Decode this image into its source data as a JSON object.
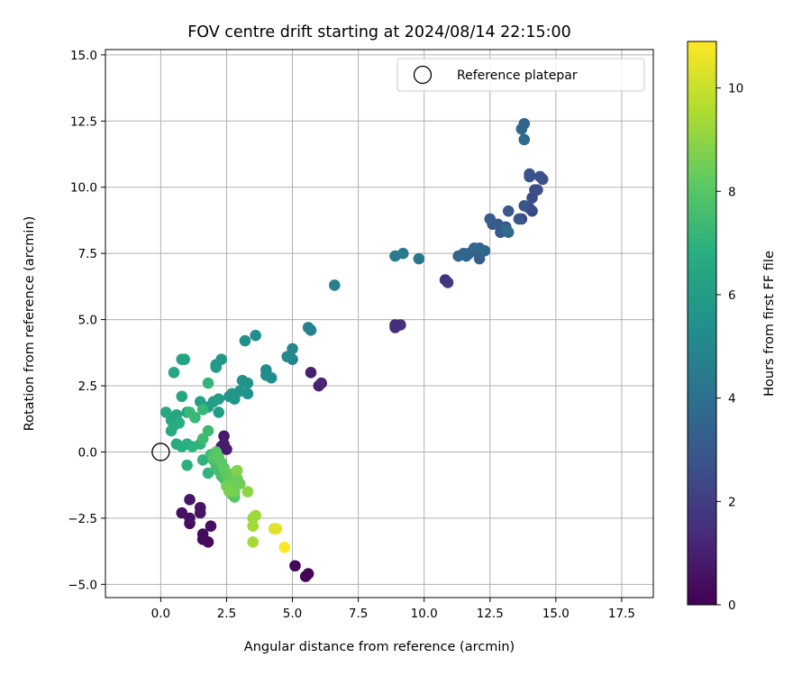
{
  "chart_data": {
    "type": "scatter",
    "title": "FOV centre drift starting at 2024/08/14 22:15:00",
    "xlabel": "Angular distance from reference (arcmin)",
    "ylabel": "Rotation from reference (arcmin)",
    "xlim": [
      -2.1,
      18.7
    ],
    "ylim": [
      -5.5,
      15.2
    ],
    "x_ticks": [
      0.0,
      2.5,
      5.0,
      7.5,
      10.0,
      12.5,
      15.0,
      17.5
    ],
    "x_tick_labels": [
      "0.0",
      "2.5",
      "5.0",
      "7.5",
      "10.0",
      "12.5",
      "15.0",
      "17.5"
    ],
    "y_ticks": [
      -5.0,
      -2.5,
      0.0,
      2.5,
      5.0,
      7.5,
      10.0,
      12.5,
      15.0
    ],
    "y_tick_labels": [
      "−5.0",
      "−2.5",
      "0.0",
      "2.5",
      "5.0",
      "7.5",
      "10.0",
      "12.5",
      "15.0"
    ],
    "grid": true,
    "legend": {
      "placement": "top-right",
      "entries": [
        "Reference platepar"
      ]
    },
    "reference_point": {
      "x": 0.0,
      "y": 0.0,
      "label": "Reference platepar"
    },
    "colorbar": {
      "label": "Hours from first FF file",
      "colormap": "viridis",
      "range": [
        0,
        10.9
      ],
      "ticks": [
        0,
        2,
        4,
        6,
        8,
        10
      ],
      "tick_labels": [
        "0",
        "2",
        "4",
        "6",
        "8",
        "10"
      ]
    },
    "points": [
      [
        5.6,
        -4.6,
        0.05
      ],
      [
        5.5,
        -4.7,
        0.1
      ],
      [
        5.1,
        -4.3,
        0.15
      ],
      [
        1.6,
        -3.3,
        0.25
      ],
      [
        1.8,
        -3.4,
        0.3
      ],
      [
        1.6,
        -3.1,
        0.35
      ],
      [
        1.9,
        -2.8,
        0.4
      ],
      [
        1.1,
        -2.7,
        0.45
      ],
      [
        0.8,
        -2.3,
        0.5
      ],
      [
        1.1,
        -2.5,
        0.55
      ],
      [
        1.5,
        -2.3,
        0.6
      ],
      [
        1.5,
        -2.1,
        0.65
      ],
      [
        1.1,
        -1.8,
        0.7
      ],
      [
        2.4,
        0.6,
        0.75
      ],
      [
        2.5,
        0.1,
        0.8
      ],
      [
        2.4,
        0.3,
        0.85
      ],
      [
        2.3,
        0.2,
        0.9
      ],
      [
        5.7,
        3.0,
        1.0
      ],
      [
        6.0,
        2.5,
        1.1
      ],
      [
        6.1,
        2.6,
        1.2
      ],
      [
        8.9,
        4.7,
        1.4
      ],
      [
        8.9,
        4.8,
        1.45
      ],
      [
        9.1,
        4.8,
        1.5
      ],
      [
        10.8,
        6.5,
        1.6
      ],
      [
        10.9,
        6.4,
        1.7
      ],
      [
        13.7,
        8.8,
        2.3
      ],
      [
        14.0,
        9.2,
        2.4
      ],
      [
        14.1,
        9.1,
        2.45
      ],
      [
        14.1,
        9.6,
        2.5
      ],
      [
        14.2,
        9.9,
        2.55
      ],
      [
        14.3,
        9.9,
        2.6
      ],
      [
        14.4,
        10.4,
        2.65
      ],
      [
        14.5,
        10.3,
        2.7
      ],
      [
        14.0,
        10.5,
        2.75
      ],
      [
        14.0,
        10.4,
        2.8
      ],
      [
        13.8,
        9.3,
        2.85
      ],
      [
        13.6,
        8.8,
        2.9
      ],
      [
        13.2,
        9.1,
        2.95
      ],
      [
        13.1,
        8.5,
        3.0
      ],
      [
        12.9,
        8.3,
        3.05
      ],
      [
        12.8,
        8.6,
        3.1
      ],
      [
        12.6,
        8.6,
        3.15
      ],
      [
        12.5,
        8.8,
        3.2
      ],
      [
        12.2,
        7.6,
        3.25
      ],
      [
        12.1,
        7.3,
        3.3
      ],
      [
        12.1,
        7.7,
        3.35
      ],
      [
        11.9,
        7.6,
        3.4
      ],
      [
        11.7,
        7.5,
        3.45
      ],
      [
        11.6,
        7.4,
        3.5
      ],
      [
        11.3,
        7.4,
        3.55
      ],
      [
        11.5,
        7.5,
        3.6
      ],
      [
        11.9,
        7.7,
        3.65
      ],
      [
        12.3,
        7.6,
        3.7
      ],
      [
        13.8,
        12.4,
        3.5
      ],
      [
        13.7,
        12.2,
        3.6
      ],
      [
        13.8,
        11.8,
        3.7
      ],
      [
        13.1,
        8.4,
        3.75
      ],
      [
        13.2,
        8.3,
        3.8
      ],
      [
        9.8,
        7.3,
        4.3
      ],
      [
        9.2,
        7.5,
        4.4
      ],
      [
        8.9,
        7.4,
        4.5
      ],
      [
        6.6,
        6.3,
        4.7
      ],
      [
        5.7,
        4.6,
        4.8
      ],
      [
        5.6,
        4.7,
        4.85
      ],
      [
        5.0,
        3.5,
        4.9
      ],
      [
        5.0,
        3.9,
        5.0
      ],
      [
        4.8,
        3.6,
        5.1
      ],
      [
        4.0,
        2.9,
        5.2
      ],
      [
        4.0,
        3.1,
        5.25
      ],
      [
        4.2,
        2.8,
        5.3
      ],
      [
        3.6,
        4.4,
        5.35
      ],
      [
        3.2,
        4.2,
        5.4
      ],
      [
        3.3,
        2.6,
        5.45
      ],
      [
        3.3,
        2.2,
        5.5
      ],
      [
        3.1,
        2.7,
        5.55
      ],
      [
        3.0,
        2.3,
        5.6
      ],
      [
        2.8,
        2.0,
        5.65
      ],
      [
        2.6,
        2.1,
        5.7
      ],
      [
        2.7,
        2.2,
        5.75
      ],
      [
        2.3,
        3.5,
        5.8
      ],
      [
        2.1,
        3.3,
        5.85
      ],
      [
        2.1,
        3.2,
        5.9
      ],
      [
        2.2,
        2.0,
        5.95
      ],
      [
        2.2,
        1.5,
        6.0
      ],
      [
        2.0,
        1.9,
        6.05
      ],
      [
        1.8,
        1.7,
        6.1
      ],
      [
        1.5,
        1.9,
        6.15
      ],
      [
        1.0,
        1.5,
        6.2
      ],
      [
        0.9,
        3.5,
        6.25
      ],
      [
        0.8,
        3.5,
        6.3
      ],
      [
        0.5,
        3.0,
        6.35
      ],
      [
        0.8,
        2.1,
        6.4
      ],
      [
        0.6,
        1.4,
        6.45
      ],
      [
        0.4,
        1.2,
        6.5
      ],
      [
        0.4,
        0.8,
        6.55
      ],
      [
        0.2,
        1.5,
        6.6
      ],
      [
        0.5,
        1.0,
        6.65
      ],
      [
        0.6,
        0.3,
        6.7
      ],
      [
        0.7,
        1.1,
        6.75
      ],
      [
        0.8,
        0.2,
        6.8
      ],
      [
        1.0,
        0.3,
        6.85
      ],
      [
        1.0,
        -0.5,
        6.9
      ],
      [
        1.2,
        0.2,
        6.95
      ],
      [
        1.5,
        0.3,
        7.0
      ],
      [
        1.6,
        -0.3,
        7.05
      ],
      [
        1.8,
        -0.8,
        7.1
      ],
      [
        1.8,
        2.6,
        7.15
      ],
      [
        1.6,
        1.6,
        7.2
      ],
      [
        1.3,
        1.3,
        7.25
      ],
      [
        1.1,
        1.5,
        7.3
      ],
      [
        1.8,
        0.8,
        7.35
      ],
      [
        1.6,
        0.5,
        7.4
      ],
      [
        1.9,
        -0.1,
        7.45
      ],
      [
        2.0,
        -0.3,
        7.5
      ],
      [
        2.1,
        -0.5,
        7.55
      ],
      [
        2.2,
        -0.7,
        7.6
      ],
      [
        2.3,
        -0.9,
        7.65
      ],
      [
        2.4,
        -1.0,
        7.7
      ],
      [
        2.5,
        -1.2,
        7.75
      ],
      [
        2.6,
        -1.4,
        7.8
      ],
      [
        2.7,
        -1.6,
        7.85
      ],
      [
        2.8,
        -1.7,
        7.9
      ],
      [
        2.0,
        -0.2,
        7.95
      ],
      [
        2.1,
        0.0,
        8.0
      ],
      [
        2.2,
        -0.2,
        8.05
      ],
      [
        2.3,
        -0.4,
        8.1
      ],
      [
        2.4,
        -0.6,
        8.15
      ],
      [
        2.5,
        -0.8,
        8.2
      ],
      [
        2.6,
        -1.0,
        8.25
      ],
      [
        2.7,
        -1.2,
        8.3
      ],
      [
        2.8,
        -0.8,
        8.35
      ],
      [
        2.9,
        -1.0,
        8.4
      ],
      [
        3.0,
        -1.2,
        8.45
      ],
      [
        2.8,
        -1.5,
        8.5
      ],
      [
        2.5,
        -1.3,
        8.6
      ],
      [
        2.6,
        -1.5,
        8.7
      ],
      [
        2.9,
        -0.7,
        8.8
      ],
      [
        3.3,
        -1.5,
        9.0
      ],
      [
        3.5,
        -2.5,
        9.2
      ],
      [
        3.6,
        -2.4,
        9.3
      ],
      [
        3.5,
        -2.8,
        9.35
      ],
      [
        3.5,
        -3.4,
        9.4
      ],
      [
        4.3,
        -2.9,
        10.3
      ],
      [
        4.4,
        -2.9,
        10.4
      ],
      [
        4.7,
        -3.6,
        10.9
      ]
    ]
  }
}
